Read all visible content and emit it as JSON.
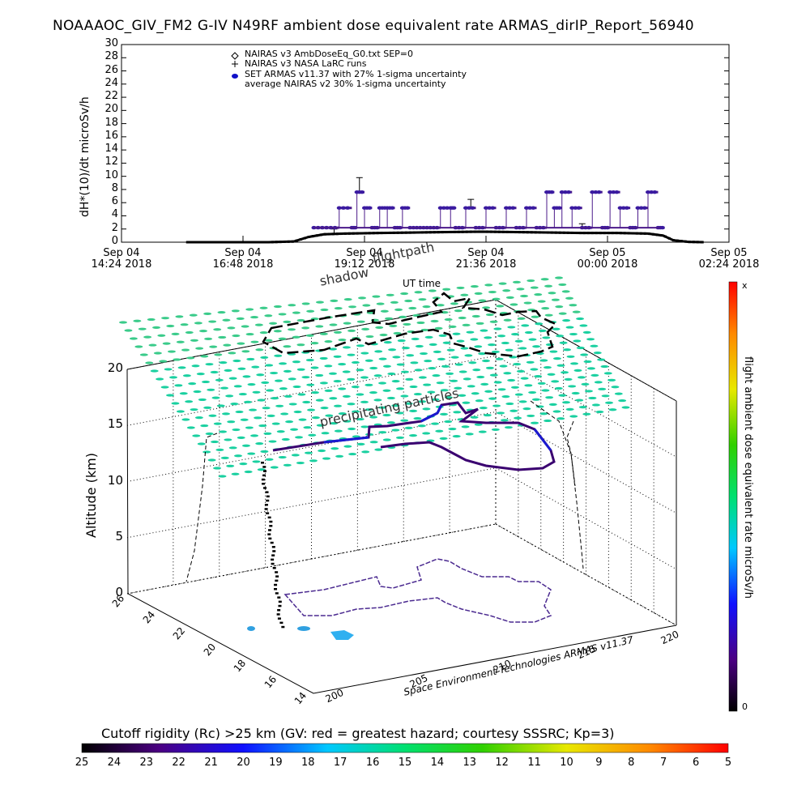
{
  "title": "NOAAAOC_GIV_FM2 G-IV   N49RF  ambient dose equivalent rate ARMAS_dirIP_Report_56940",
  "chart_data": [
    {
      "type": "scatter",
      "ylabel": "dH*(10)/dt microSv/h",
      "xlabel": "UT time",
      "ylim": [
        0,
        30
      ],
      "yticks": [
        "0",
        "2",
        "4",
        "6",
        "8",
        "10",
        "12",
        "14",
        "16",
        "18",
        "20",
        "22",
        "24",
        "26",
        "28",
        "30"
      ],
      "xticks": [
        {
          "line1": "Sep 04",
          "line2": "14:24 2018"
        },
        {
          "line1": "Sep 04",
          "line2": "16:48 2018"
        },
        {
          "line1": "Sep 04",
          "line2": "19:12 2018"
        },
        {
          "line1": "Sep 04",
          "line2": "21:36 2018"
        },
        {
          "line1": "Sep 05",
          "line2": "00:00 2018"
        },
        {
          "line1": "Sep 05",
          "line2": "02:24 2018"
        }
      ],
      "xrange_hours": [
        14.4,
        26.4
      ],
      "legend": [
        "NAIRAS v3 AmbDoseEq_G0.txt SEP=0",
        "NAIRAS v3 NASA LaRC runs",
        "SET ARMAS v11.37 with 27% 1-sigma uncertainty",
        "average NAIRAS v2 30% 1-sigma uncertainty"
      ],
      "series": [
        {
          "name": "SET ARMAS v11.37 with 27% 1-sigma uncertainty",
          "x": [
            18.2,
            18.45,
            18.7,
            18.95,
            19.05,
            19.2,
            19.35,
            19.5,
            19.65,
            19.8,
            19.95,
            20.1,
            20.3,
            20.5,
            20.7,
            20.9,
            21.0,
            21.2,
            21.4,
            21.6,
            21.8,
            22.0,
            22.2,
            22.4,
            22.6,
            22.8,
            22.95,
            23.1,
            23.3,
            23.5,
            23.7,
            23.9,
            24.05,
            24.25,
            24.45,
            24.6,
            24.8,
            25.0
          ],
          "values": [
            2.2,
            2.2,
            5.2,
            2.2,
            7.6,
            5.2,
            2.2,
            5.2,
            5.2,
            2.2,
            5.2,
            2.2,
            2.2,
            2.2,
            5.2,
            5.2,
            2.2,
            5.2,
            2.2,
            5.2,
            2.2,
            5.2,
            2.2,
            5.2,
            2.2,
            7.6,
            5.2,
            7.6,
            5.2,
            2.2,
            7.6,
            2.2,
            7.6,
            5.2,
            2.2,
            5.2,
            7.6,
            2.2
          ]
        },
        {
          "name": "NAIRAS v3 AmbDoseEq_G0.txt SEP=0",
          "x": [
            15.7,
            16.5,
            17.3,
            17.8,
            18.1,
            18.4,
            18.8,
            19.5,
            20.5,
            21.5,
            22.5,
            23.5,
            24.2,
            24.8,
            25.1,
            25.3,
            25.6,
            25.9
          ],
          "values": [
            0,
            0,
            0,
            0.1,
            0.8,
            1.2,
            1.3,
            1.4,
            1.5,
            1.6,
            1.5,
            1.4,
            1.4,
            1.3,
            1.0,
            0.3,
            0.05,
            0
          ]
        }
      ]
    },
    {
      "type": "scatter",
      "zlabel": "Altitude (km)",
      "zticks": [
        "0",
        "5",
        "10",
        "15",
        "20"
      ],
      "yticks": [
        "14",
        "16",
        "18",
        "20",
        "22",
        "24",
        "26"
      ],
      "xticks": [
        "200",
        "205",
        "210",
        "215",
        "220"
      ],
      "labels": [
        "shadow",
        "flightpath",
        "precipitating particles"
      ],
      "credit": "Space Environment Technologies ARMAS v11.37"
    }
  ],
  "colorbar_right": {
    "label": "flight ambient dose equivalent rate microSv/h",
    "top": "x",
    "bottom": "0"
  },
  "colorbar_bottom": {
    "label": "Cutoff rigidity (Rc) >25 km (GV: red = greatest hazard; courtesy SSSRC; Kp=3)",
    "ticks": [
      "25",
      "24",
      "23",
      "22",
      "21",
      "20",
      "19",
      "18",
      "17",
      "16",
      "15",
      "14",
      "13",
      "12",
      "11",
      "10",
      "9",
      "8",
      "7",
      "6",
      "5"
    ]
  }
}
